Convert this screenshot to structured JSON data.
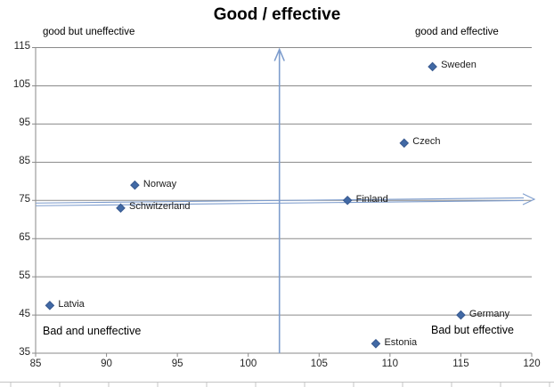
{
  "chart_data": {
    "type": "scatter",
    "title": "Good / effective",
    "xlim": [
      85,
      120
    ],
    "ylim": [
      35,
      115
    ],
    "x_ticks": [
      85,
      90,
      95,
      100,
      105,
      110,
      115,
      120
    ],
    "y_ticks": [
      35,
      45,
      55,
      65,
      75,
      85,
      95,
      105,
      115
    ],
    "grid": "horizontal-only",
    "legend": "none",
    "points": [
      {
        "label": "Sweden",
        "x": 113,
        "y": 110
      },
      {
        "label": "Czech",
        "x": 111,
        "y": 90
      },
      {
        "label": "Norway",
        "x": 92,
        "y": 79
      },
      {
        "label": "Schwitzerland",
        "x": 91,
        "y": 73
      },
      {
        "label": "Finland",
        "x": 107,
        "y": 75
      },
      {
        "label": "Latvia",
        "x": 86,
        "y": 47.5
      },
      {
        "label": "Germany",
        "x": 115,
        "y": 45
      },
      {
        "label": "Estonia",
        "x": 109,
        "y": 37.5
      }
    ],
    "quadrant_labels": {
      "top_left": "good but uneffective",
      "top_right": "good and effective",
      "bottom_left": "Bad and uneffective",
      "bottom_right": "Bad but effective"
    },
    "annotations": {
      "cross_arrows": {
        "vertical_x": 102.2,
        "horizontal_y": 75
      }
    },
    "colors": {
      "marker_fill": "#4169A5",
      "marker_stroke": "#38598F",
      "gridline": "#8a8a8a",
      "arrow": "#7e9dcd",
      "sub_line": "#c4c4c4"
    }
  }
}
